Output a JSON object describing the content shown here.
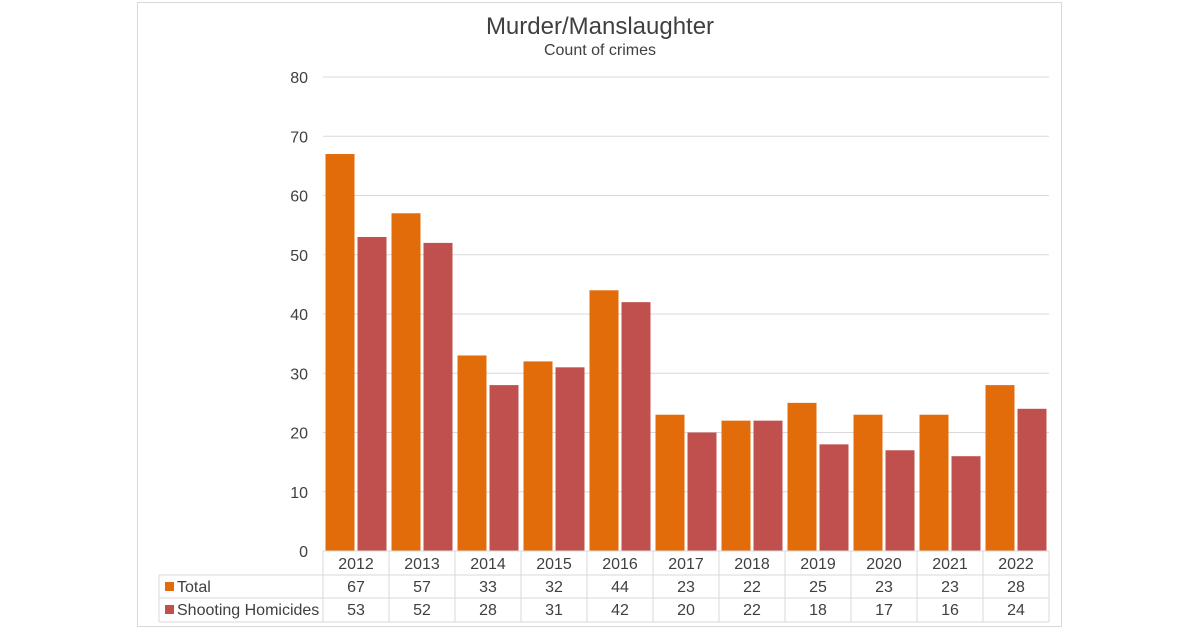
{
  "chart_data": {
    "type": "bar",
    "title": "Murder/Manslaughter",
    "subtitle": "Count of crimes",
    "categories": [
      "2012",
      "2013",
      "2014",
      "2015",
      "2016",
      "2017",
      "2018",
      "2019",
      "2020",
      "2021",
      "2022"
    ],
    "series": [
      {
        "name": "Total",
        "color": "#e36c0a",
        "values": [
          67,
          57,
          33,
          32,
          44,
          23,
          22,
          25,
          23,
          23,
          28
        ]
      },
      {
        "name": "Shooting Homicides",
        "color": "#c0504d",
        "values": [
          53,
          52,
          28,
          31,
          42,
          20,
          22,
          18,
          17,
          16,
          24
        ]
      }
    ],
    "ylim": [
      0,
      80
    ],
    "yticks": [
      0,
      10,
      20,
      30,
      40,
      50,
      60,
      70,
      80
    ],
    "grid": true,
    "legend": "data-table-bottom"
  }
}
